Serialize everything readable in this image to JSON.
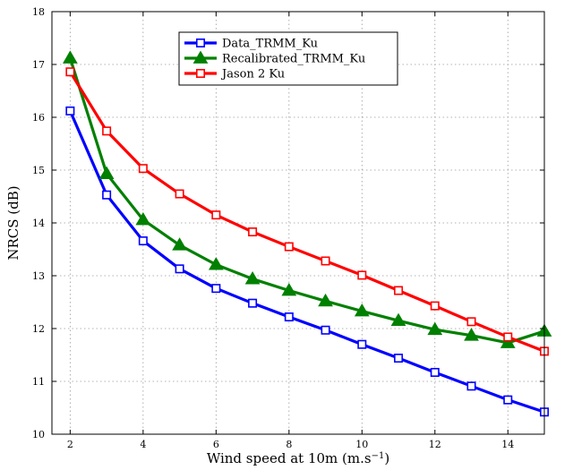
{
  "chart_data": {
    "type": "line",
    "xlabel": "Wind speed at 10m (m.s",
    "xlabel_sup": "−1",
    "xlabel_close": ")",
    "ylabel": "NRCS (dB)",
    "xlim": [
      1.5,
      15
    ],
    "ylim": [
      10,
      18
    ],
    "xticks": [
      2,
      4,
      6,
      8,
      10,
      12,
      14
    ],
    "yticks": [
      10,
      11,
      12,
      13,
      14,
      15,
      16,
      17,
      18
    ],
    "grid": true,
    "legend_position": "top-center",
    "x": [
      2,
      3,
      4,
      5,
      6,
      7,
      8,
      9,
      10,
      11,
      12,
      13,
      14,
      15
    ],
    "series": [
      {
        "name": "Data_TRMM_Ku",
        "color": "#0000ff",
        "marker": "square",
        "values": [
          16.12,
          14.53,
          13.66,
          13.13,
          12.76,
          12.48,
          12.22,
          11.97,
          11.7,
          11.44,
          11.17,
          10.91,
          10.65,
          10.42
        ]
      },
      {
        "name": "Recalibrated_TRMM_Ku",
        "color": "#008000",
        "marker": "triangle",
        "values": [
          17.12,
          14.93,
          14.06,
          13.58,
          13.21,
          12.94,
          12.72,
          12.52,
          12.33,
          12.15,
          11.98,
          11.87,
          11.73,
          11.95
        ]
      },
      {
        "name": "Jason 2 Ku",
        "color": "#ff0000",
        "marker": "square",
        "values": [
          16.86,
          15.74,
          15.03,
          14.55,
          14.15,
          13.83,
          13.55,
          13.28,
          13.01,
          12.72,
          12.43,
          12.13,
          11.84,
          11.57
        ]
      }
    ]
  }
}
